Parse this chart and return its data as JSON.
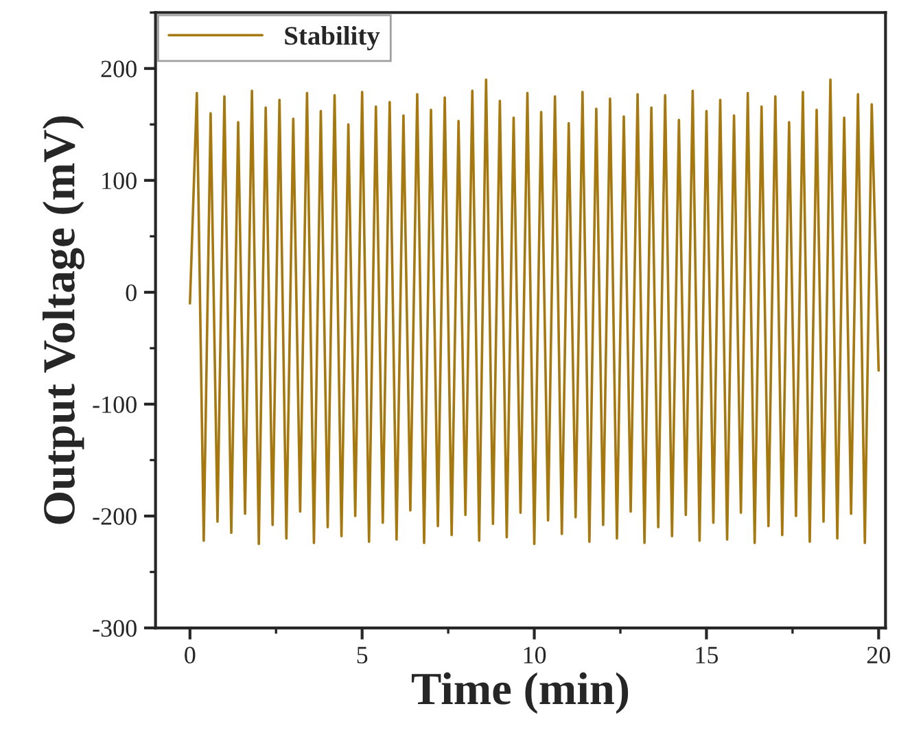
{
  "chart_data": {
    "type": "line",
    "xlabel": "Time (min)",
    "ylabel": "Output Voltage (mV)",
    "xlim": [
      -1,
      20.2
    ],
    "ylim": [
      -300,
      250
    ],
    "xticks": [
      0,
      5,
      10,
      15,
      20
    ],
    "yticks": [
      -300,
      -200,
      -100,
      0,
      100,
      200
    ],
    "grid": false,
    "legend": "top left",
    "marker": "none",
    "line_style": "solid",
    "x": [
      0,
      0.2,
      0.4,
      0.6,
      0.8,
      1.0,
      1.2,
      1.4,
      1.6,
      1.8,
      2.0,
      2.2,
      2.4,
      2.6,
      2.8,
      3.0,
      3.2,
      3.4,
      3.6,
      3.8,
      4.0,
      4.2,
      4.4,
      4.6,
      4.8,
      5.0,
      5.2,
      5.4,
      5.6,
      5.8,
      6.0,
      6.2,
      6.4,
      6.6,
      6.8,
      7.0,
      7.2,
      7.4,
      7.6,
      7.8,
      8.0,
      8.2,
      8.4,
      8.6,
      8.8,
      9.0,
      9.2,
      9.4,
      9.6,
      9.8,
      10.0,
      10.2,
      10.4,
      10.6,
      10.8,
      11.0,
      11.2,
      11.4,
      11.6,
      11.8,
      12.0,
      12.2,
      12.4,
      12.6,
      12.8,
      13.0,
      13.2,
      13.4,
      13.6,
      13.8,
      14.0,
      14.2,
      14.4,
      14.6,
      14.8,
      15.0,
      15.2,
      15.4,
      15.6,
      15.8,
      16.0,
      16.2,
      16.4,
      16.6,
      16.8,
      17.0,
      17.2,
      17.4,
      17.6,
      17.8,
      18.0,
      18.2,
      18.4,
      18.6,
      18.8,
      19.0,
      19.2,
      19.4,
      19.6,
      19.8,
      20.0
    ],
    "series": [
      {
        "name": "Stability",
        "color": "#a57810",
        "values": [
          -10,
          178,
          -222,
          160,
          -205,
          175,
          -215,
          152,
          -198,
          180,
          -225,
          165,
          -208,
          172,
          -220,
          155,
          -196,
          178,
          -224,
          162,
          -210,
          176,
          -218,
          150,
          -200,
          179,
          -223,
          166,
          -206,
          170,
          -221,
          158,
          -195,
          177,
          -224,
          163,
          -209,
          174,
          -217,
          153,
          -199,
          180,
          -222,
          190,
          -207,
          171,
          -219,
          156,
          -197,
          178,
          -225,
          161,
          -204,
          175,
          -216,
          151,
          -201,
          179,
          -223,
          164,
          -208,
          173,
          -220,
          157,
          -196,
          177,
          -224,
          165,
          -210,
          176,
          -218,
          154,
          -199,
          180,
          -222,
          162,
          -206,
          172,
          -221,
          158,
          -197,
          178,
          -224,
          166,
          -209,
          175,
          -217,
          152,
          -200,
          179,
          -223,
          163,
          -205,
          190,
          -220,
          156,
          -198,
          177,
          -224,
          168,
          -70
        ]
      }
    ]
  }
}
